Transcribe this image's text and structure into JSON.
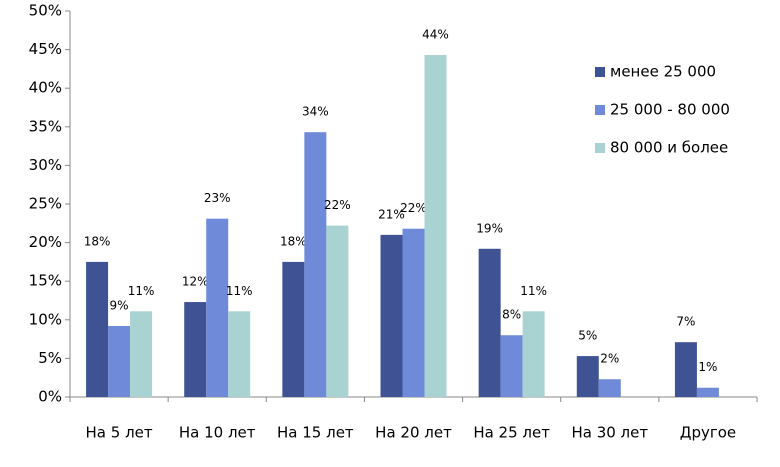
{
  "chart_data": {
    "type": "bar",
    "categories": [
      "На 5 лет",
      "На 10 лет",
      "На 15 лет",
      "На 20 лет",
      "На 25 лет",
      "На 30 лет",
      "Другое"
    ],
    "series": [
      {
        "name": "менее 25 000",
        "color": "#3f5394",
        "values": [
          17.5,
          12.3,
          17.5,
          21,
          19.2,
          5.3,
          7.1
        ],
        "value_labels": [
          "18%",
          "12%",
          "18%",
          "21%",
          "19%",
          "5%",
          "7%"
        ]
      },
      {
        "name": "25 000 - 80 000",
        "color": "#6f8ad8",
        "values": [
          9.2,
          23.1,
          34.3,
          21.8,
          8,
          2.3,
          1.2
        ],
        "value_labels": [
          "9%",
          "23%",
          "34%",
          "22%",
          "8%",
          "2%",
          "1%"
        ]
      },
      {
        "name": "80 000 и более",
        "color": "#a9d2d2",
        "values": [
          11.1,
          11.1,
          22.2,
          44.3,
          11.1,
          null,
          null
        ],
        "value_labels": [
          "11%",
          "11%",
          "22%",
          "44%",
          "11%",
          null,
          null
        ]
      }
    ],
    "ylim": [
      0,
      50
    ],
    "yticks": [
      {
        "value": 0,
        "label": "0%"
      },
      {
        "value": 5,
        "label": "5%"
      },
      {
        "value": 10,
        "label": "10%"
      },
      {
        "value": 15,
        "label": "15%"
      },
      {
        "value": 20,
        "label": "20%"
      },
      {
        "value": 25,
        "label": "25%"
      },
      {
        "value": 30,
        "label": "30%"
      },
      {
        "value": 35,
        "label": "35%"
      },
      {
        "value": 40,
        "label": "40%"
      },
      {
        "value": 45,
        "label": "45%"
      },
      {
        "value": 50,
        "label": "50%"
      }
    ],
    "legend": "right"
  }
}
